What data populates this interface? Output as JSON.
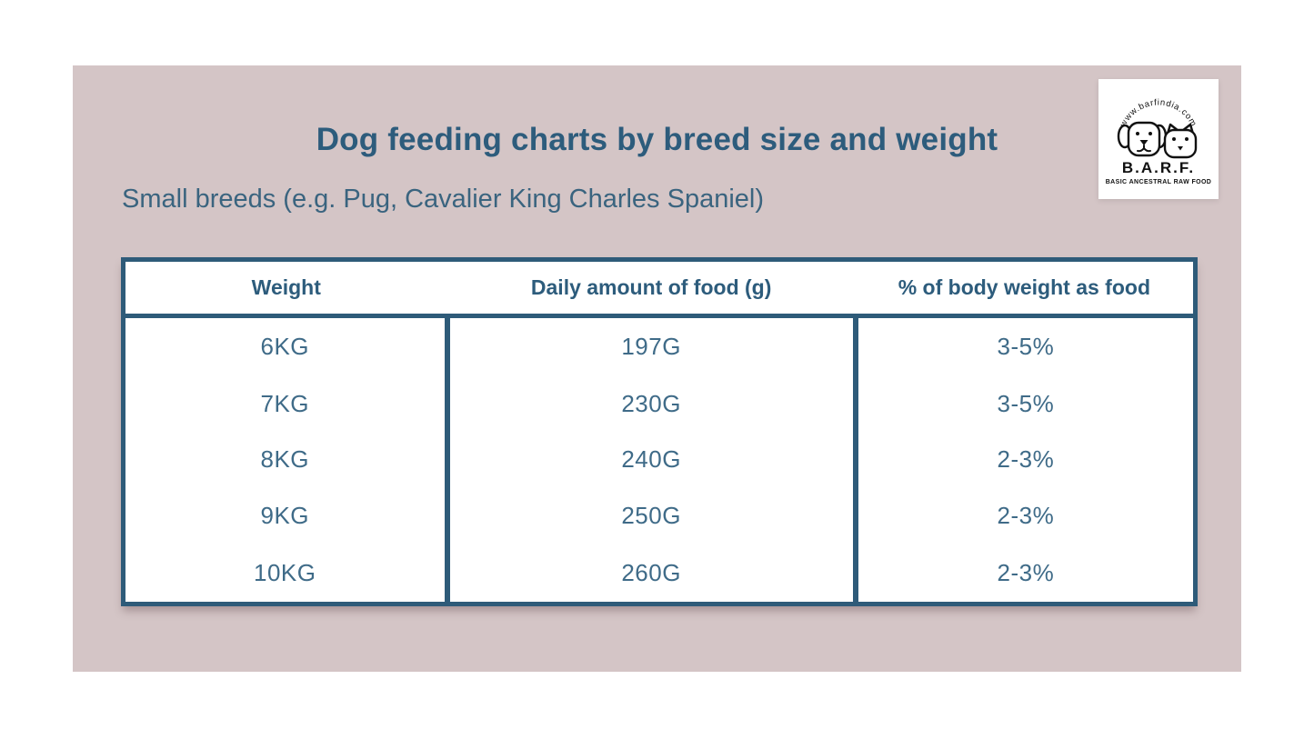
{
  "page": {
    "background": "#ffffff",
    "panel_color": "#d4c5c6"
  },
  "colors": {
    "accent_dark_blue": "#2d5c7c",
    "table_border_blue": "#2e5b79",
    "body_text_blue": "#3f6b88",
    "logo_ink": "#111111"
  },
  "header": {
    "title": "Dog feeding charts by breed size and weight",
    "subtitle": "Small breeds (e.g. Pug, Cavalier King Charles Spaniel)"
  },
  "logo": {
    "website": "www.barfindia.com",
    "name": "B.A.R.F.",
    "tagline": "BASIC ANCESTRAL RAW FOOD",
    "icons": [
      "dog-face-icon",
      "cat-face-icon"
    ]
  },
  "chart_data": {
    "type": "table",
    "title": "Dog feeding charts by breed size and weight",
    "subtitle": "Small breeds (e.g. Pug, Cavalier King Charles Spaniel)",
    "columns": [
      "Weight",
      "Daily amount of food (g)",
      "% of body weight as food"
    ],
    "rows": [
      [
        "6KG",
        "197G",
        "3-5%"
      ],
      [
        "7KG",
        "230G",
        "3-5%"
      ],
      [
        "8KG",
        "240G",
        "2-3%"
      ],
      [
        "9KG",
        "250G",
        "2-3%"
      ],
      [
        "10KG",
        "260G",
        "2-3%"
      ]
    ]
  }
}
